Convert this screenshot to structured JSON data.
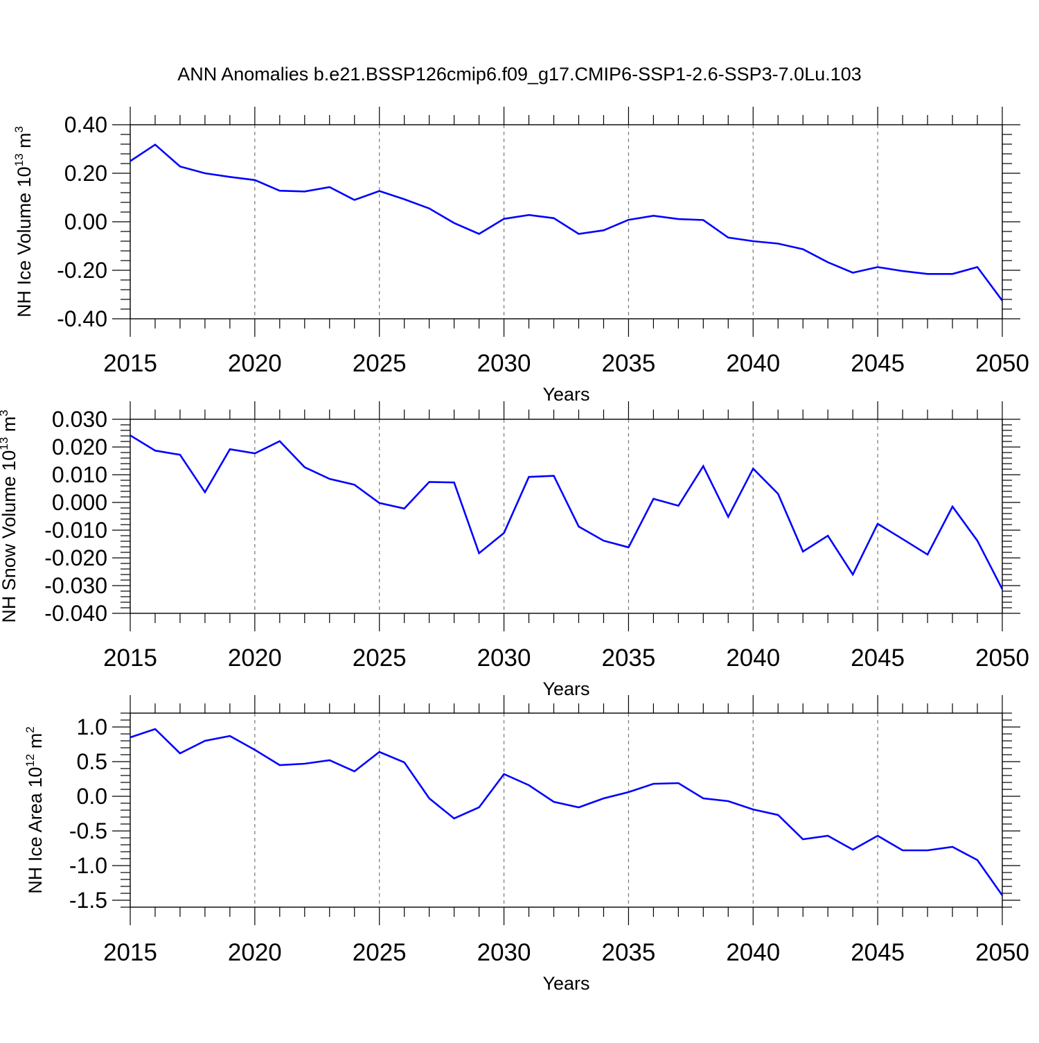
{
  "title": "ANN Anomalies b.e21.BSSP126cmip6.f09_g17.CMIP6-SSP1-2.6-SSP3-7.0Lu.103",
  "line_color": "#0000ff",
  "chart_data": [
    {
      "type": "line",
      "title": "ANN Anomalies b.e21.BSSP126cmip6.f09_g17.CMIP6-SSP1-2.6-SSP3-7.0Lu.103",
      "xlabel": "Years",
      "ylabel_main": "NH Ice Volume 10",
      "ylabel_exp": "13",
      "ylabel_unit": " m",
      "ylabel_unit_exp": "3",
      "xlim": [
        2015,
        2050
      ],
      "ylim": [
        -0.4,
        0.4
      ],
      "xticks": [
        2015,
        2020,
        2025,
        2030,
        2035,
        2040,
        2045,
        2050
      ],
      "yticks": [
        -0.4,
        -0.2,
        0.0,
        0.2,
        0.4
      ],
      "ytick_labels": [
        "-0.40",
        "-0.20",
        "0.00",
        "0.20",
        "0.40"
      ],
      "series": [
        {
          "name": "NH Ice Volume",
          "x": [
            2015,
            2016,
            2017,
            2018,
            2019,
            2020,
            2021,
            2022,
            2023,
            2024,
            2025,
            2026,
            2027,
            2028,
            2029,
            2030,
            2031,
            2032,
            2033,
            2034,
            2035,
            2036,
            2037,
            2038,
            2039,
            2040,
            2041,
            2042,
            2043,
            2044,
            2045,
            2046,
            2047,
            2048,
            2049,
            2050
          ],
          "values": [
            0.25,
            0.318,
            0.228,
            0.2,
            0.185,
            0.172,
            0.128,
            0.125,
            0.143,
            0.09,
            0.127,
            0.093,
            0.055,
            -0.005,
            -0.05,
            0.012,
            0.028,
            0.015,
            -0.05,
            -0.035,
            0.008,
            0.025,
            0.011,
            0.007,
            -0.065,
            -0.08,
            -0.09,
            -0.113,
            -0.167,
            -0.21,
            -0.187,
            -0.203,
            -0.215,
            -0.215,
            -0.187,
            -0.325
          ]
        }
      ]
    },
    {
      "type": "line",
      "xlabel": "Years",
      "ylabel_main": "NH Snow Volume 10",
      "ylabel_exp": "13",
      "ylabel_unit": " m",
      "ylabel_unit_exp": "3",
      "xlim": [
        2015,
        2050
      ],
      "ylim": [
        -0.04,
        0.03
      ],
      "xticks": [
        2015,
        2020,
        2025,
        2030,
        2035,
        2040,
        2045,
        2050
      ],
      "yticks": [
        -0.04,
        -0.03,
        -0.02,
        -0.01,
        0.0,
        0.01,
        0.02,
        0.03
      ],
      "ytick_labels": [
        "-0.040",
        "-0.030",
        "-0.020",
        "-0.010",
        "0.000",
        "0.010",
        "0.020",
        "0.030"
      ],
      "series": [
        {
          "name": "NH Snow Volume",
          "x": [
            2015,
            2016,
            2017,
            2018,
            2019,
            2020,
            2021,
            2022,
            2023,
            2024,
            2025,
            2026,
            2027,
            2028,
            2029,
            2030,
            2031,
            2032,
            2033,
            2034,
            2035,
            2036,
            2037,
            2038,
            2039,
            2040,
            2041,
            2042,
            2043,
            2044,
            2045,
            2046,
            2047,
            2048,
            2049,
            2050
          ],
          "values": [
            0.0242,
            0.0187,
            0.0172,
            0.0037,
            0.0192,
            0.0177,
            0.0221,
            0.0127,
            0.0085,
            0.0064,
            -0.0002,
            -0.0022,
            0.0074,
            0.0072,
            -0.0183,
            -0.011,
            0.0092,
            0.0096,
            -0.0087,
            -0.0138,
            -0.0162,
            0.0013,
            -0.0012,
            0.0131,
            -0.0052,
            0.0122,
            0.0031,
            -0.0177,
            -0.012,
            -0.026,
            -0.0077,
            -0.0132,
            -0.0188,
            -0.0015,
            -0.0138,
            -0.0313
          ]
        }
      ]
    },
    {
      "type": "line",
      "xlabel": "Years",
      "ylabel_main": "NH Ice Area 10",
      "ylabel_exp": "12",
      "ylabel_unit": " m",
      "ylabel_unit_exp": "2",
      "xlim": [
        2015,
        2050
      ],
      "ylim": [
        -1.6,
        1.2
      ],
      "xticks": [
        2015,
        2020,
        2025,
        2030,
        2035,
        2040,
        2045,
        2050
      ],
      "yticks": [
        -1.5,
        -1.0,
        -0.5,
        0.0,
        0.5,
        1.0
      ],
      "ytick_labels": [
        "-1.5",
        "-1.0",
        "-0.5",
        "0.0",
        "0.5",
        "1.0"
      ],
      "series": [
        {
          "name": "NH Ice Area",
          "x": [
            2015,
            2016,
            2017,
            2018,
            2019,
            2020,
            2021,
            2022,
            2023,
            2024,
            2025,
            2026,
            2027,
            2028,
            2029,
            2030,
            2031,
            2032,
            2033,
            2034,
            2035,
            2036,
            2037,
            2038,
            2039,
            2040,
            2041,
            2042,
            2043,
            2044,
            2045,
            2046,
            2047,
            2048,
            2049,
            2050
          ],
          "values": [
            0.85,
            0.97,
            0.62,
            0.8,
            0.87,
            0.67,
            0.45,
            0.47,
            0.52,
            0.36,
            0.64,
            0.49,
            -0.03,
            -0.32,
            -0.16,
            0.32,
            0.16,
            -0.08,
            -0.16,
            -0.03,
            0.06,
            0.18,
            0.19,
            -0.03,
            -0.07,
            -0.19,
            -0.27,
            -0.62,
            -0.57,
            -0.77,
            -0.57,
            -0.78,
            -0.78,
            -0.73,
            -0.92,
            -1.43
          ]
        }
      ]
    }
  ]
}
